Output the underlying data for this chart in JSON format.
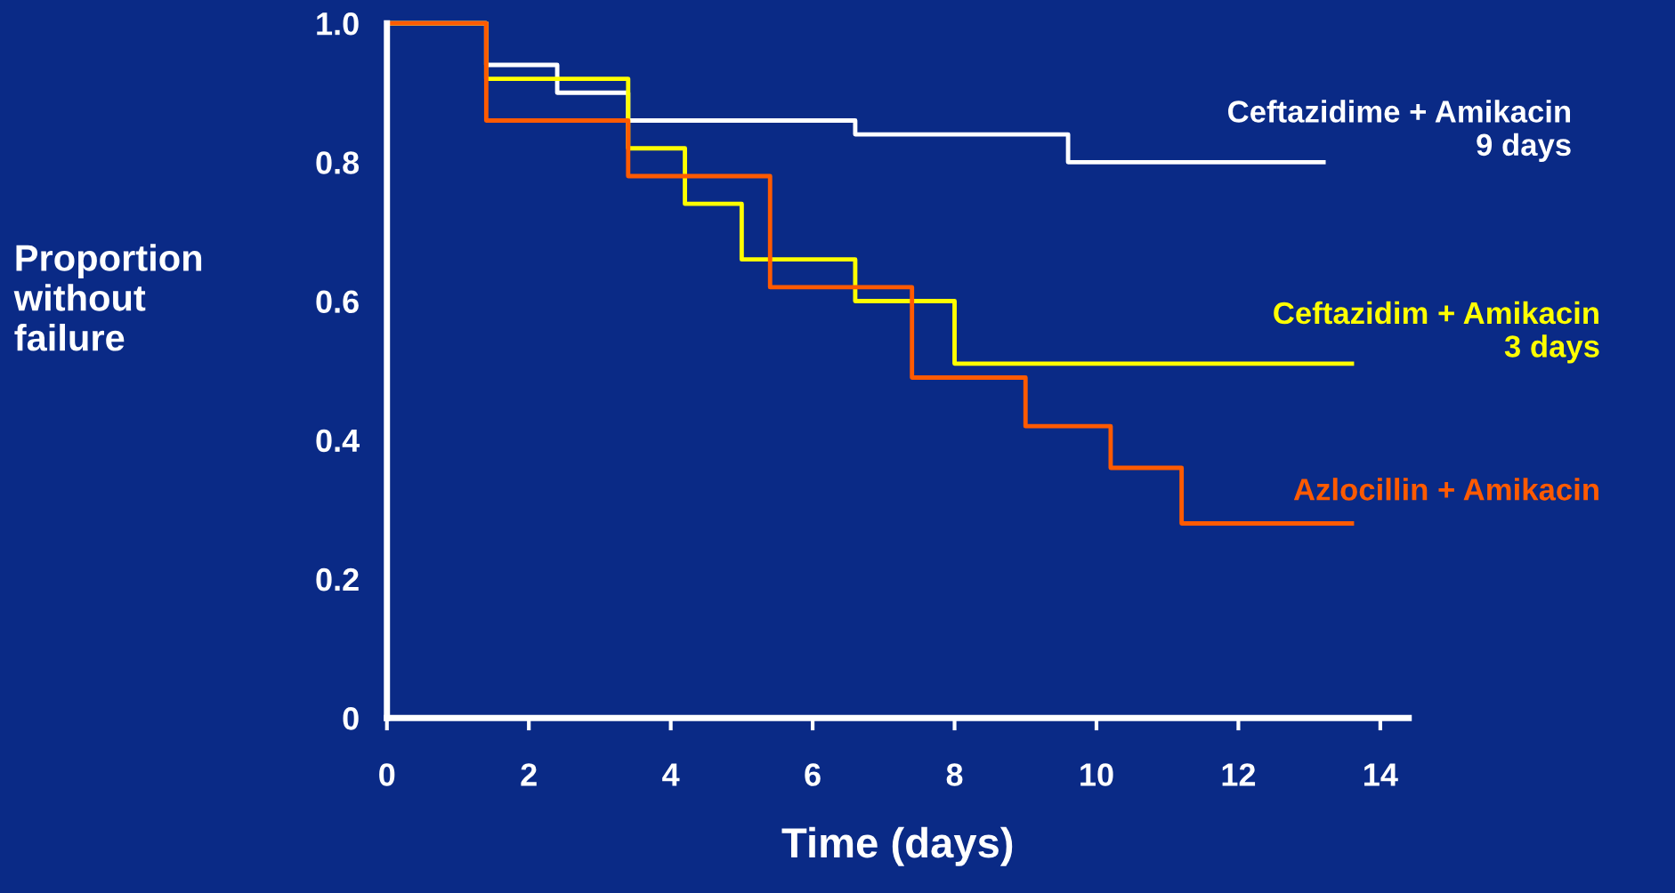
{
  "chart_data": {
    "type": "step",
    "xlabel": "Time (days)",
    "ylabel": "Proportion\nwithout\nfailure",
    "xlim": [
      0,
      14.4
    ],
    "ylim": [
      0,
      1.0
    ],
    "xticks": [
      0,
      2,
      4,
      6,
      8,
      10,
      12,
      14
    ],
    "yticks": [
      0,
      0.2,
      0.4,
      0.6,
      0.8,
      {
        "value": 1.0,
        "label": "1.0"
      }
    ],
    "grid": false,
    "legend": false,
    "marker": "none",
    "line_style": "solid",
    "series": [
      {
        "name": "Ceftazidime + Amikacin\n9 days",
        "color": "#ffffff",
        "x": [
          0,
          1.4,
          2.4,
          3.4,
          6.6,
          9.6,
          13.2
        ],
        "values": [
          1.0,
          0.94,
          0.9,
          0.86,
          0.84,
          0.8,
          0.8
        ]
      },
      {
        "name": "Ceftazidim + Amikacin\n3 days",
        "color": "#ffff00",
        "x": [
          0,
          1.4,
          3.4,
          4.2,
          5.0,
          6.6,
          8.0,
          13.6
        ],
        "values": [
          1.0,
          0.92,
          0.82,
          0.74,
          0.66,
          0.6,
          0.51,
          0.51
        ]
      },
      {
        "name": "Azlocillin + Amikacin",
        "color": "#ff5a00",
        "x": [
          0,
          1.4,
          3.4,
          5.4,
          7.4,
          9.0,
          10.2,
          11.2,
          13.6
        ],
        "values": [
          1.0,
          0.86,
          0.78,
          0.62,
          0.49,
          0.42,
          0.36,
          0.28,
          0.28
        ]
      }
    ]
  }
}
